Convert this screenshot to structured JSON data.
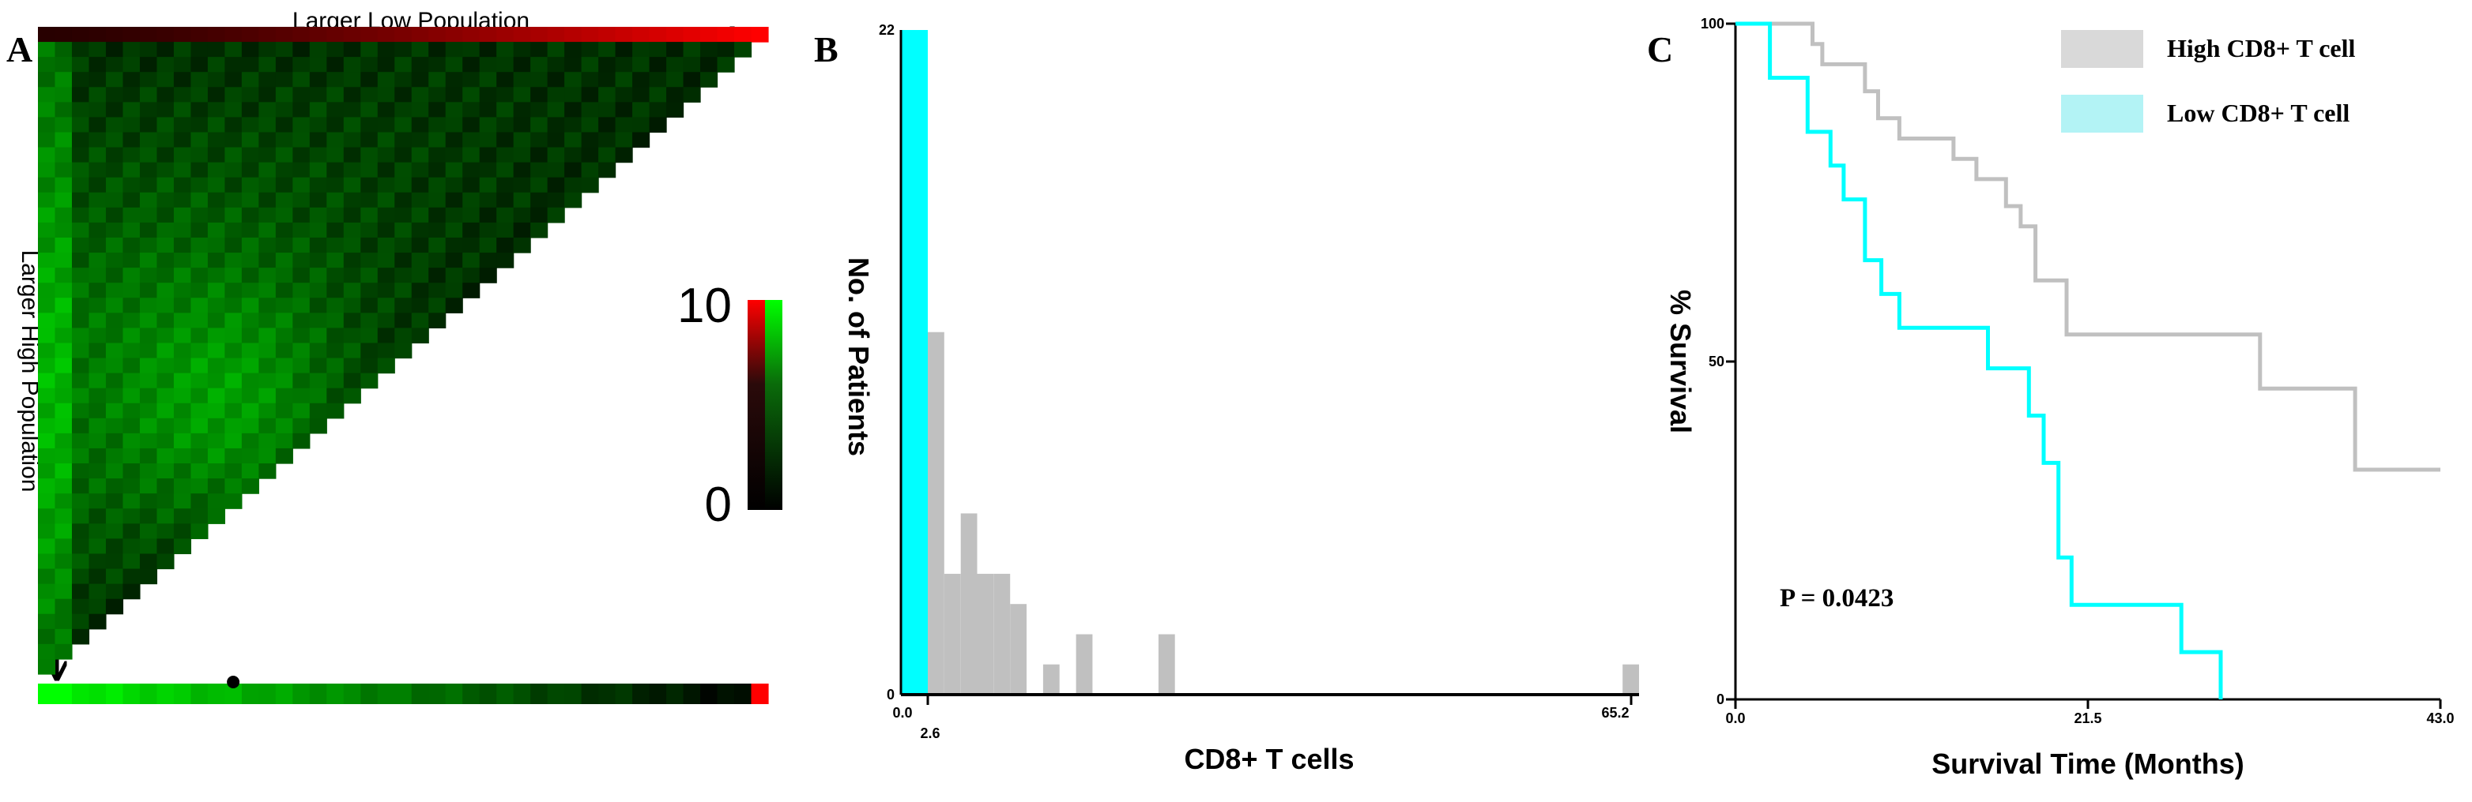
{
  "chart_data": [
    {
      "panel": "A",
      "type": "heatmap",
      "x_axis_label": "Larger Low Population",
      "y_axis_label": "Larger High Population",
      "colorbar": {
        "min_label": "0",
        "max_label": "10",
        "colors": [
          "#000000",
          "#00ff00",
          "#ff0000"
        ]
      },
      "n_cells": 43,
      "bottom_bar_marker_index": 11
    },
    {
      "panel": "B",
      "type": "bar",
      "title": "",
      "xlabel": "CD8+ T cells",
      "ylabel": "No. of Patients",
      "ylim": [
        0,
        22
      ],
      "y_ticks": [
        "0",
        "22"
      ],
      "x_ticks": [
        "0.0",
        "2.6",
        "65.2"
      ],
      "xlim": [
        0,
        65.2
      ],
      "cutoff": 2.6,
      "bin_width": 1.45,
      "series": [
        {
          "color": "#00ffff",
          "bins": [
            {
              "x_start": 0.0,
              "x_end": 2.6,
              "count": 22
            }
          ]
        },
        {
          "color": "#c0c0c0",
          "bins": [
            {
              "x_start": 2.6,
              "x_end": 4.05,
              "count": 12
            },
            {
              "x_start": 4.05,
              "x_end": 5.5,
              "count": 4
            },
            {
              "x_start": 5.5,
              "x_end": 6.95,
              "count": 6
            },
            {
              "x_start": 6.95,
              "x_end": 8.4,
              "count": 4
            },
            {
              "x_start": 8.4,
              "x_end": 9.85,
              "count": 4
            },
            {
              "x_start": 9.85,
              "x_end": 11.3,
              "count": 3
            },
            {
              "x_start": 12.75,
              "x_end": 14.2,
              "count": 1
            },
            {
              "x_start": 15.65,
              "x_end": 17.1,
              "count": 2
            },
            {
              "x_start": 22.9,
              "x_end": 24.35,
              "count": 2
            },
            {
              "x_start": 63.75,
              "x_end": 65.2,
              "count": 1
            }
          ]
        }
      ]
    },
    {
      "panel": "C",
      "type": "line",
      "title": "",
      "xlabel": "Survival Time (Months)",
      "ylabel": "% Survival",
      "xlim": [
        0,
        43
      ],
      "ylim": [
        0,
        100
      ],
      "x_ticks": [
        "0.0",
        "21.5",
        "43.0"
      ],
      "y_ticks": [
        "0",
        "50",
        "100"
      ],
      "annotation": "P = 0.0423",
      "legend_position": "top-right",
      "series": [
        {
          "name": "High CD8+ T cell",
          "color": "#c0c0c0",
          "step_points": [
            [
              0,
              100
            ],
            [
              4.7,
              100
            ],
            [
              4.7,
              97
            ],
            [
              5.3,
              97
            ],
            [
              5.3,
              94
            ],
            [
              7.9,
              94
            ],
            [
              7.9,
              90
            ],
            [
              8.7,
              90
            ],
            [
              8.7,
              86
            ],
            [
              10.0,
              86
            ],
            [
              10.0,
              83
            ],
            [
              13.3,
              83
            ],
            [
              13.3,
              80
            ],
            [
              14.7,
              80
            ],
            [
              14.7,
              77
            ],
            [
              16.5,
              77
            ],
            [
              16.5,
              73
            ],
            [
              17.4,
              73
            ],
            [
              17.4,
              70
            ],
            [
              18.3,
              70
            ],
            [
              18.3,
              62
            ],
            [
              20.2,
              62
            ],
            [
              20.2,
              54
            ],
            [
              32.0,
              54
            ],
            [
              32.0,
              46
            ],
            [
              37.8,
              46
            ],
            [
              37.8,
              34
            ],
            [
              43.0,
              34
            ]
          ]
        },
        {
          "name": "Low CD8+ T cell",
          "color": "#00ffff",
          "step_points": [
            [
              0,
              100
            ],
            [
              2.1,
              100
            ],
            [
              2.1,
              92
            ],
            [
              4.4,
              92
            ],
            [
              4.4,
              84
            ],
            [
              5.8,
              84
            ],
            [
              5.8,
              79
            ],
            [
              6.6,
              79
            ],
            [
              6.6,
              74
            ],
            [
              7.9,
              74
            ],
            [
              7.9,
              65
            ],
            [
              8.9,
              65
            ],
            [
              8.9,
              60
            ],
            [
              10.0,
              60
            ],
            [
              10.0,
              55
            ],
            [
              15.4,
              55
            ],
            [
              15.4,
              49
            ],
            [
              17.9,
              49
            ],
            [
              17.9,
              42
            ],
            [
              18.8,
              42
            ],
            [
              18.8,
              35
            ],
            [
              19.7,
              35
            ],
            [
              19.7,
              21
            ],
            [
              20.5,
              21
            ],
            [
              20.5,
              14
            ],
            [
              27.2,
              14
            ],
            [
              27.2,
              7
            ],
            [
              29.6,
              7
            ],
            [
              29.6,
              0
            ]
          ]
        }
      ]
    }
  ],
  "panels": {
    "a": {
      "letter": "A"
    },
    "b": {
      "letter": "B"
    },
    "c": {
      "letter": "C"
    }
  }
}
